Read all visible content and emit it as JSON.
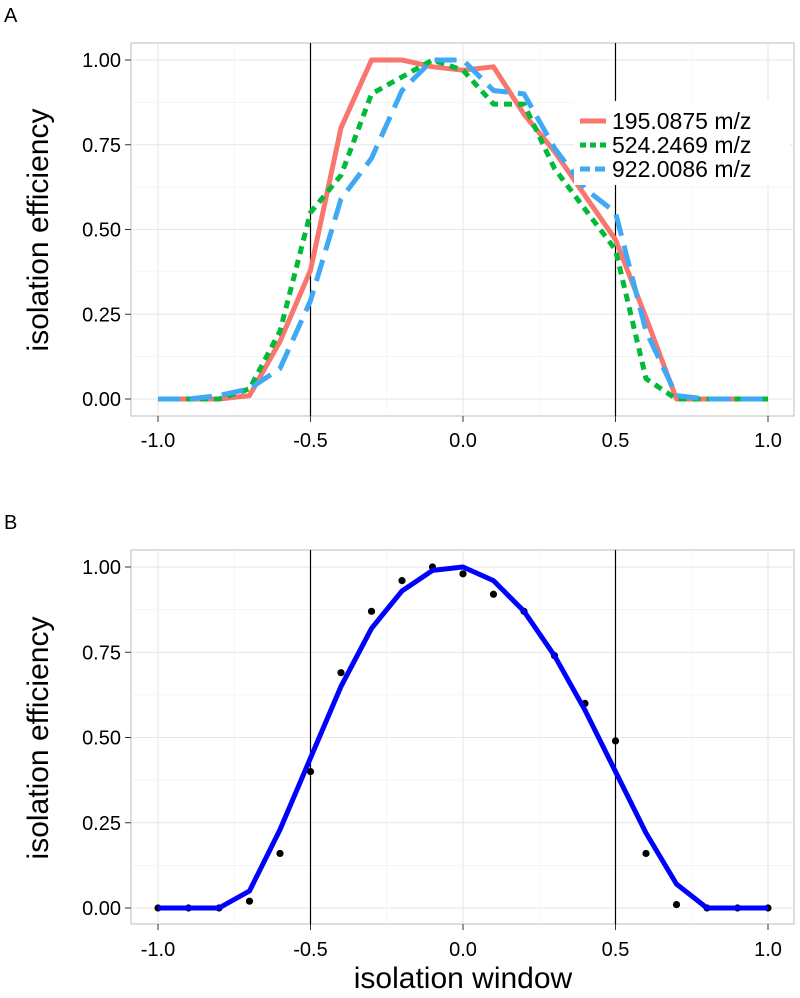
{
  "chart_data": [
    {
      "type": "line",
      "panel_label": "A",
      "xlabel": "",
      "ylabel": "isolation efficiency",
      "xlim": [
        -1.0,
        1.0
      ],
      "ylim": [
        0.0,
        1.0
      ],
      "x_ticks": [
        "-1.0",
        "-0.5",
        "0.0",
        "0.5",
        "1.0"
      ],
      "y_ticks": [
        "0.00",
        "0.25",
        "0.50",
        "0.75",
        "1.00"
      ],
      "vlines": [
        -0.5,
        0.5
      ],
      "grid": true,
      "legend_position": "top-right",
      "series": [
        {
          "name": "195.0875 m/z",
          "color": "#F8766D",
          "dash": "solid",
          "x": [
            -1.0,
            -0.9,
            -0.8,
            -0.7,
            -0.6,
            -0.5,
            -0.4,
            -0.3,
            -0.2,
            -0.1,
            0.0,
            0.1,
            0.2,
            0.3,
            0.4,
            0.5,
            0.6,
            0.7,
            0.8,
            0.9,
            1.0
          ],
          "y": [
            0.0,
            0.0,
            0.0,
            0.01,
            0.17,
            0.38,
            0.8,
            1.0,
            1.0,
            0.98,
            0.97,
            0.98,
            0.84,
            0.73,
            0.6,
            0.47,
            0.24,
            0.0,
            0.0,
            0.0,
            0.0
          ]
        },
        {
          "name": "524.2469 m/z",
          "color": "#00BA38",
          "dash": "dotted",
          "x": [
            -1.0,
            -0.9,
            -0.8,
            -0.7,
            -0.6,
            -0.5,
            -0.4,
            -0.3,
            -0.2,
            -0.1,
            0.0,
            0.1,
            0.2,
            0.3,
            0.4,
            0.5,
            0.6,
            0.7,
            0.8,
            0.9,
            1.0
          ],
          "y": [
            0.0,
            0.0,
            0.0,
            0.03,
            0.2,
            0.55,
            0.66,
            0.9,
            0.95,
            1.0,
            0.97,
            0.87,
            0.87,
            0.68,
            0.56,
            0.44,
            0.06,
            0.0,
            0.0,
            0.0,
            0.0
          ]
        },
        {
          "name": "922.0086 m/z",
          "color": "#3FA9F5",
          "dash": "dashed",
          "x": [
            -1.0,
            -0.9,
            -0.8,
            -0.7,
            -0.6,
            -0.5,
            -0.4,
            -0.3,
            -0.2,
            -0.1,
            0.0,
            0.1,
            0.2,
            0.3,
            0.4,
            0.5,
            0.6,
            0.7,
            0.8,
            0.9,
            1.0
          ],
          "y": [
            0.0,
            0.0,
            0.01,
            0.03,
            0.09,
            0.29,
            0.59,
            0.71,
            0.91,
            1.0,
            1.0,
            0.91,
            0.9,
            0.74,
            0.62,
            0.55,
            0.2,
            0.01,
            0.0,
            0.0,
            0.0
          ]
        }
      ]
    },
    {
      "type": "scatter",
      "panel_label": "B",
      "xlabel": "isolation window",
      "ylabel": "isolation efficiency",
      "xlim": [
        -1.0,
        1.0
      ],
      "ylim": [
        0.0,
        1.0
      ],
      "x_ticks": [
        "-1.0",
        "-0.5",
        "0.0",
        "0.5",
        "1.0"
      ],
      "y_ticks": [
        "0.00",
        "0.25",
        "0.50",
        "0.75",
        "1.00"
      ],
      "vlines": [
        -0.5,
        0.5
      ],
      "grid": true,
      "series": [
        {
          "kind": "points",
          "color": "#000000",
          "x": [
            -1.0,
            -0.9,
            -0.8,
            -0.7,
            -0.6,
            -0.5,
            -0.4,
            -0.3,
            -0.2,
            -0.1,
            0.0,
            0.1,
            0.2,
            0.3,
            0.4,
            0.5,
            0.6,
            0.7,
            0.8,
            0.9,
            1.0
          ],
          "y": [
            0.0,
            0.0,
            0.0,
            0.02,
            0.16,
            0.4,
            0.69,
            0.87,
            0.96,
            1.0,
            0.98,
            0.92,
            0.87,
            0.74,
            0.6,
            0.49,
            0.16,
            0.01,
            0.0,
            0.0,
            0.0
          ]
        },
        {
          "kind": "line",
          "color": "#0000FF",
          "x": [
            -1.0,
            -0.9,
            -0.8,
            -0.7,
            -0.6,
            -0.5,
            -0.4,
            -0.3,
            -0.2,
            -0.1,
            0.0,
            0.1,
            0.2,
            0.3,
            0.4,
            0.5,
            0.6,
            0.7,
            0.8,
            0.9,
            1.0
          ],
          "y": [
            0.0,
            0.0,
            0.0,
            0.05,
            0.23,
            0.44,
            0.65,
            0.82,
            0.93,
            0.99,
            1.0,
            0.96,
            0.87,
            0.74,
            0.58,
            0.4,
            0.22,
            0.07,
            0.0,
            0.0,
            0.0
          ]
        }
      ]
    }
  ]
}
